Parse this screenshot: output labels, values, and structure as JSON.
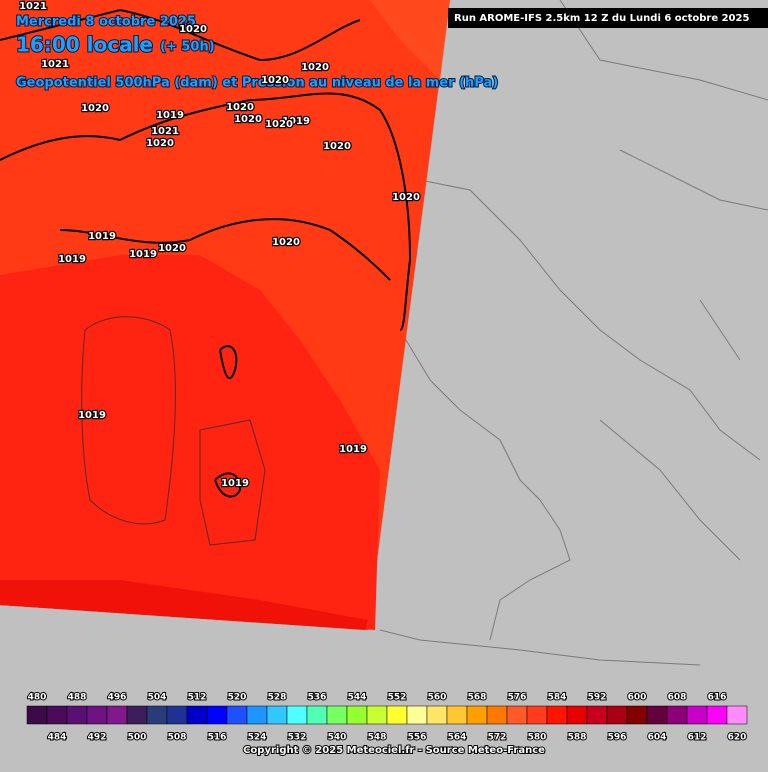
{
  "header": {
    "date": "Mercredi 8 octobre 2025",
    "time": "16:00 locale",
    "lead": "(+ 50h)",
    "field": "Geopotentiel 500hPa (dam) et Pression au niveau de la mer (hPa)",
    "run": "Run AROME-IFS 2.5km 12 Z du Lundi 6 octobre 2025"
  },
  "isobar_labels": [
    "1021",
    "1020",
    "1021",
    "1020",
    "1020",
    "1020",
    "1019",
    "1020",
    "1020",
    "1019",
    "1020",
    "1021",
    "1020",
    "1020",
    "1020",
    "1019",
    "1020",
    "1019",
    "1020",
    "1019",
    "1019",
    "1019",
    "1019"
  ],
  "colorbar": {
    "values": [
      480,
      484,
      488,
      492,
      496,
      500,
      504,
      508,
      512,
      516,
      520,
      524,
      528,
      532,
      536,
      540,
      544,
      548,
      552,
      556,
      560,
      564,
      568,
      572,
      576,
      580,
      584,
      588,
      592,
      596,
      600,
      604,
      608,
      612,
      616,
      620
    ],
    "colors": [
      "#3c0a46",
      "#4b0a5a",
      "#5a0f73",
      "#6e1482",
      "#801a8c",
      "#3c1e5a",
      "#283c78",
      "#1e3296",
      "#0000c8",
      "#0000ff",
      "#1e50ff",
      "#1e96ff",
      "#32c8ff",
      "#50ffff",
      "#50ffb4",
      "#78ff64",
      "#96ff32",
      "#c8ff32",
      "#ffff32",
      "#ffff96",
      "#ffe664",
      "#ffc832",
      "#ffa000",
      "#ff7800",
      "#ff5a28",
      "#ff3c1e",
      "#ff1400",
      "#e60000",
      "#c8001e",
      "#aa0014",
      "#820000",
      "#64003c",
      "#8c0078",
      "#c800c8",
      "#ff00ff",
      "#ff8cff"
    ]
  },
  "footer": {
    "copyright": "Copyright © 2025 Meteociel.fr - Source Meteo-France"
  }
}
